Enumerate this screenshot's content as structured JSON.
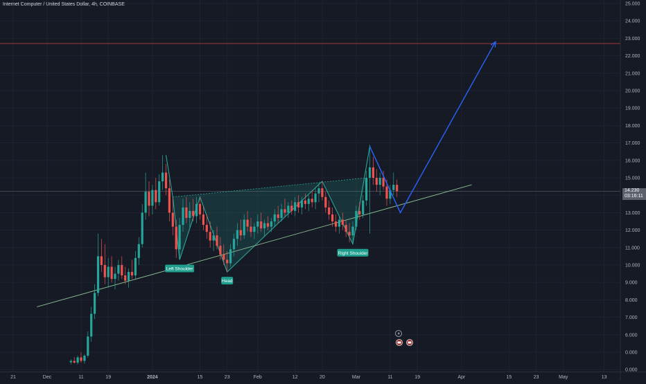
{
  "header": {
    "title": "Internet Computer / United States Dollar, 4h, COINBASE"
  },
  "current_price": {
    "value": "14.230",
    "countdown": "03:16:11"
  },
  "annotations": {
    "left_shoulder": "Left Shoulder",
    "head": "Head",
    "right_shoulder": "Right Shoulder"
  },
  "colors": {
    "background": "#161a25",
    "up": "#26a69a",
    "down": "#ef5350",
    "pattern": "#2aa698",
    "projection": "#2962ff",
    "target_line": "#b83a3a",
    "trendline": "#8fbf95"
  },
  "chart_data": {
    "type": "candlestick",
    "title": "Internet Computer / United States Dollar, 4h, COINBASE",
    "xlabel": "",
    "ylabel": "",
    "ylim": [
      0,
      25
    ],
    "y_ticks": [
      "25.000",
      "24.000",
      "23.000",
      "22.000",
      "21.000",
      "20.000",
      "19.000",
      "18.000",
      "17.000",
      "16.000",
      "15.000",
      "14.000",
      "13.000",
      "12.000",
      "11.000",
      "10.000",
      "9.000",
      "8.000",
      "7.000",
      "6.000",
      "0.000",
      "0.000"
    ],
    "x_ticks": [
      {
        "label": "21",
        "date": "2023-11-21"
      },
      {
        "label": "Dec",
        "date": "2023-12-01"
      },
      {
        "label": "11",
        "date": "2023-12-11"
      },
      {
        "label": "19",
        "date": "2023-12-19"
      },
      {
        "label": "2024",
        "date": "2024-01-01"
      },
      {
        "label": "15",
        "date": "2024-01-15"
      },
      {
        "label": "23",
        "date": "2024-01-23"
      },
      {
        "label": "Feb",
        "date": "2024-02-01"
      },
      {
        "label": "12",
        "date": "2024-02-12"
      },
      {
        "label": "20",
        "date": "2024-02-20"
      },
      {
        "label": "Mar",
        "date": "2024-03-01"
      },
      {
        "label": "11",
        "date": "2024-03-11"
      },
      {
        "label": "19",
        "date": "2024-03-19"
      },
      {
        "label": "Apr",
        "date": "2024-04-01"
      },
      {
        "label": "15",
        "date": "2024-04-15"
      },
      {
        "label": "23",
        "date": "2024-04-23"
      },
      {
        "label": "May",
        "date": "2024-05-01"
      },
      {
        "label": "13",
        "date": "2024-05-13"
      }
    ],
    "target_level": 22.7,
    "trendline": [
      [
        "2023-11-28",
        7.6
      ],
      [
        "2024-04-04",
        14.6
      ]
    ],
    "pattern_points": [
      {
        "date": "2024-01-05",
        "value": 16.3
      },
      {
        "date": "2024-01-07",
        "value": 13.9
      },
      {
        "date": "2024-01-09",
        "value": 10.3
      },
      {
        "date": "2024-01-15",
        "value": 13.9
      },
      {
        "date": "2024-01-23",
        "value": 9.6
      },
      {
        "date": "2024-02-20",
        "value": 14.8
      },
      {
        "date": "2024-02-29",
        "value": 11.2
      },
      {
        "date": "2024-03-05",
        "value": 16.8
      },
      {
        "date": "2024-03-14",
        "value": 13.0
      }
    ],
    "projection": [
      {
        "date": "2024-03-05",
        "value": 16.8
      },
      {
        "date": "2024-03-14",
        "value": 13.0
      },
      {
        "date": "2024-04-11",
        "value": 22.8
      }
    ],
    "neckline": [
      [
        "2024-01-07",
        13.9
      ],
      [
        "2024-03-04",
        15.0
      ]
    ],
    "candles": [
      {
        "d": "2023-12-08",
        "o": 4.42,
        "h": 4.6,
        "l": 4.3,
        "c": 4.5
      },
      {
        "d": "2023-12-09",
        "o": 4.5,
        "h": 4.72,
        "l": 4.35,
        "c": 4.4
      },
      {
        "d": "2023-12-10",
        "o": 4.4,
        "h": 4.8,
        "l": 4.3,
        "c": 4.7
      },
      {
        "d": "2023-12-11",
        "o": 4.7,
        "h": 5.0,
        "l": 4.4,
        "c": 4.5
      },
      {
        "d": "2023-12-12",
        "o": 4.5,
        "h": 4.9,
        "l": 4.35,
        "c": 4.8
      },
      {
        "d": "2023-12-13",
        "o": 4.8,
        "h": 6.2,
        "l": 4.7,
        "c": 5.9
      },
      {
        "d": "2023-12-14",
        "o": 5.9,
        "h": 7.6,
        "l": 5.6,
        "c": 7.2
      },
      {
        "d": "2023-12-15",
        "o": 7.2,
        "h": 8.9,
        "l": 6.9,
        "c": 8.4
      },
      {
        "d": "2023-12-16",
        "o": 8.4,
        "h": 11.8,
        "l": 8.2,
        "c": 10.5
      },
      {
        "d": "2023-12-17",
        "o": 10.5,
        "h": 11.5,
        "l": 9.6,
        "c": 10.0
      },
      {
        "d": "2023-12-18",
        "o": 10.0,
        "h": 11.2,
        "l": 8.9,
        "c": 9.3
      },
      {
        "d": "2023-12-19",
        "o": 9.3,
        "h": 10.4,
        "l": 8.7,
        "c": 9.9
      },
      {
        "d": "2023-12-20",
        "o": 9.9,
        "h": 10.5,
        "l": 9.0,
        "c": 9.2
      },
      {
        "d": "2023-12-21",
        "o": 9.2,
        "h": 9.9,
        "l": 8.6,
        "c": 9.5
      },
      {
        "d": "2023-12-22",
        "o": 9.5,
        "h": 10.3,
        "l": 9.1,
        "c": 10.0
      },
      {
        "d": "2023-12-23",
        "o": 10.0,
        "h": 10.5,
        "l": 9.2,
        "c": 9.4
      },
      {
        "d": "2023-12-24",
        "o": 9.4,
        "h": 9.9,
        "l": 8.9,
        "c": 9.1
      },
      {
        "d": "2023-12-25",
        "o": 9.1,
        "h": 9.8,
        "l": 8.7,
        "c": 9.6
      },
      {
        "d": "2023-12-26",
        "o": 9.6,
        "h": 10.3,
        "l": 9.2,
        "c": 9.4
      },
      {
        "d": "2023-12-27",
        "o": 9.4,
        "h": 10.8,
        "l": 9.2,
        "c": 10.4
      },
      {
        "d": "2023-12-28",
        "o": 10.4,
        "h": 11.6,
        "l": 10.0,
        "c": 11.2
      },
      {
        "d": "2023-12-29",
        "o": 11.2,
        "h": 13.5,
        "l": 11.0,
        "c": 13.0
      },
      {
        "d": "2023-12-30",
        "o": 13.0,
        "h": 15.3,
        "l": 12.6,
        "c": 14.2
      },
      {
        "d": "2023-12-31",
        "o": 14.2,
        "h": 14.8,
        "l": 12.8,
        "c": 13.4
      },
      {
        "d": "2024-01-01",
        "o": 13.4,
        "h": 14.6,
        "l": 12.9,
        "c": 14.3
      },
      {
        "d": "2024-01-02",
        "o": 14.3,
        "h": 15.0,
        "l": 13.2,
        "c": 13.6
      },
      {
        "d": "2024-01-03",
        "o": 13.6,
        "h": 15.2,
        "l": 13.4,
        "c": 14.8
      },
      {
        "d": "2024-01-04",
        "o": 14.8,
        "h": 16.3,
        "l": 14.3,
        "c": 15.3
      },
      {
        "d": "2024-01-05",
        "o": 15.3,
        "h": 15.8,
        "l": 14.0,
        "c": 14.4
      },
      {
        "d": "2024-01-06",
        "o": 14.4,
        "h": 14.9,
        "l": 12.5,
        "c": 13.0
      },
      {
        "d": "2024-01-07",
        "o": 13.0,
        "h": 13.9,
        "l": 11.7,
        "c": 12.2
      },
      {
        "d": "2024-01-08",
        "o": 12.2,
        "h": 12.6,
        "l": 10.4,
        "c": 10.9
      },
      {
        "d": "2024-01-09",
        "o": 10.9,
        "h": 12.7,
        "l": 10.3,
        "c": 12.3
      },
      {
        "d": "2024-01-10",
        "o": 12.3,
        "h": 13.8,
        "l": 11.9,
        "c": 13.3
      },
      {
        "d": "2024-01-11",
        "o": 13.3,
        "h": 13.9,
        "l": 12.4,
        "c": 12.7
      },
      {
        "d": "2024-01-12",
        "o": 12.7,
        "h": 13.6,
        "l": 12.1,
        "c": 13.1
      },
      {
        "d": "2024-01-13",
        "o": 13.1,
        "h": 13.8,
        "l": 12.5,
        "c": 12.8
      },
      {
        "d": "2024-01-14",
        "o": 12.8,
        "h": 13.9,
        "l": 12.4,
        "c": 13.5
      },
      {
        "d": "2024-01-15",
        "o": 13.5,
        "h": 13.9,
        "l": 12.6,
        "c": 12.9
      },
      {
        "d": "2024-01-16",
        "o": 12.9,
        "h": 13.4,
        "l": 12.0,
        "c": 12.3
      },
      {
        "d": "2024-01-17",
        "o": 12.3,
        "h": 12.9,
        "l": 11.5,
        "c": 11.9
      },
      {
        "d": "2024-01-18",
        "o": 11.9,
        "h": 12.5,
        "l": 11.0,
        "c": 11.4
      },
      {
        "d": "2024-01-19",
        "o": 11.4,
        "h": 12.0,
        "l": 10.8,
        "c": 11.7
      },
      {
        "d": "2024-01-20",
        "o": 11.7,
        "h": 12.2,
        "l": 10.9,
        "c": 11.1
      },
      {
        "d": "2024-01-21",
        "o": 11.1,
        "h": 11.6,
        "l": 10.3,
        "c": 10.6
      },
      {
        "d": "2024-01-22",
        "o": 10.6,
        "h": 11.2,
        "l": 10.0,
        "c": 10.3
      },
      {
        "d": "2024-01-23",
        "o": 10.3,
        "h": 10.8,
        "l": 9.6,
        "c": 10.1
      },
      {
        "d": "2024-01-24",
        "o": 10.1,
        "h": 11.2,
        "l": 9.9,
        "c": 10.9
      },
      {
        "d": "2024-01-25",
        "o": 10.9,
        "h": 11.8,
        "l": 10.5,
        "c": 11.5
      },
      {
        "d": "2024-01-26",
        "o": 11.5,
        "h": 12.4,
        "l": 11.1,
        "c": 12.0
      },
      {
        "d": "2024-01-27",
        "o": 12.0,
        "h": 12.6,
        "l": 11.4,
        "c": 11.7
      },
      {
        "d": "2024-01-28",
        "o": 11.7,
        "h": 12.9,
        "l": 11.5,
        "c": 12.6
      },
      {
        "d": "2024-01-29",
        "o": 12.6,
        "h": 13.1,
        "l": 11.9,
        "c": 12.2
      },
      {
        "d": "2024-01-30",
        "o": 12.2,
        "h": 12.7,
        "l": 11.6,
        "c": 11.9
      },
      {
        "d": "2024-01-31",
        "o": 11.9,
        "h": 12.4,
        "l": 11.5,
        "c": 12.2
      },
      {
        "d": "2024-02-01",
        "o": 12.2,
        "h": 12.9,
        "l": 11.8,
        "c": 12.5
      },
      {
        "d": "2024-02-02",
        "o": 12.5,
        "h": 13.0,
        "l": 11.9,
        "c": 12.1
      },
      {
        "d": "2024-02-03",
        "o": 12.1,
        "h": 12.6,
        "l": 11.6,
        "c": 12.4
      },
      {
        "d": "2024-02-04",
        "o": 12.4,
        "h": 12.8,
        "l": 12.0,
        "c": 12.2
      },
      {
        "d": "2024-02-05",
        "o": 12.2,
        "h": 12.7,
        "l": 11.9,
        "c": 12.5
      },
      {
        "d": "2024-02-06",
        "o": 12.5,
        "h": 13.2,
        "l": 12.2,
        "c": 12.9
      },
      {
        "d": "2024-02-07",
        "o": 12.9,
        "h": 13.4,
        "l": 12.4,
        "c": 12.7
      },
      {
        "d": "2024-02-08",
        "o": 12.7,
        "h": 13.5,
        "l": 12.5,
        "c": 13.2
      },
      {
        "d": "2024-02-09",
        "o": 13.2,
        "h": 13.8,
        "l": 12.8,
        "c": 13.0
      },
      {
        "d": "2024-02-10",
        "o": 13.0,
        "h": 13.6,
        "l": 12.7,
        "c": 13.4
      },
      {
        "d": "2024-02-11",
        "o": 13.4,
        "h": 13.7,
        "l": 12.9,
        "c": 13.1
      },
      {
        "d": "2024-02-12",
        "o": 13.1,
        "h": 13.9,
        "l": 12.8,
        "c": 13.6
      },
      {
        "d": "2024-02-13",
        "o": 13.6,
        "h": 14.0,
        "l": 13.0,
        "c": 13.3
      },
      {
        "d": "2024-02-14",
        "o": 13.3,
        "h": 13.9,
        "l": 12.9,
        "c": 13.7
      },
      {
        "d": "2024-02-15",
        "o": 13.7,
        "h": 14.1,
        "l": 13.2,
        "c": 13.5
      },
      {
        "d": "2024-02-16",
        "o": 13.5,
        "h": 14.0,
        "l": 13.1,
        "c": 13.8
      },
      {
        "d": "2024-02-17",
        "o": 13.8,
        "h": 14.3,
        "l": 13.3,
        "c": 13.6
      },
      {
        "d": "2024-02-18",
        "o": 13.6,
        "h": 14.4,
        "l": 13.2,
        "c": 14.1
      },
      {
        "d": "2024-02-19",
        "o": 14.1,
        "h": 14.7,
        "l": 13.6,
        "c": 14.4
      },
      {
        "d": "2024-02-20",
        "o": 14.4,
        "h": 14.8,
        "l": 13.7,
        "c": 13.9
      },
      {
        "d": "2024-02-21",
        "o": 13.9,
        "h": 14.2,
        "l": 13.0,
        "c": 13.3
      },
      {
        "d": "2024-02-22",
        "o": 13.3,
        "h": 13.7,
        "l": 12.6,
        "c": 12.9
      },
      {
        "d": "2024-02-23",
        "o": 12.9,
        "h": 13.3,
        "l": 12.2,
        "c": 12.5
      },
      {
        "d": "2024-02-24",
        "o": 12.5,
        "h": 12.9,
        "l": 11.9,
        "c": 12.2
      },
      {
        "d": "2024-02-25",
        "o": 12.2,
        "h": 12.8,
        "l": 11.8,
        "c": 12.6
      },
      {
        "d": "2024-02-26",
        "o": 12.6,
        "h": 13.0,
        "l": 12.0,
        "c": 12.3
      },
      {
        "d": "2024-02-27",
        "o": 12.3,
        "h": 12.6,
        "l": 11.6,
        "c": 11.9
      },
      {
        "d": "2024-02-28",
        "o": 11.9,
        "h": 12.4,
        "l": 11.3,
        "c": 11.7
      },
      {
        "d": "2024-02-29",
        "o": 11.7,
        "h": 12.5,
        "l": 11.2,
        "c": 12.2
      },
      {
        "d": "2024-03-01",
        "o": 12.2,
        "h": 13.4,
        "l": 12.0,
        "c": 13.1
      },
      {
        "d": "2024-03-02",
        "o": 13.1,
        "h": 13.6,
        "l": 12.6,
        "c": 12.9
      },
      {
        "d": "2024-03-03",
        "o": 12.9,
        "h": 14.0,
        "l": 12.7,
        "c": 13.7
      },
      {
        "d": "2024-03-04",
        "o": 13.7,
        "h": 15.4,
        "l": 13.4,
        "c": 15.0
      },
      {
        "d": "2024-03-05",
        "o": 15.0,
        "h": 16.9,
        "l": 11.8,
        "c": 15.6
      },
      {
        "d": "2024-03-06",
        "o": 15.6,
        "h": 16.2,
        "l": 14.6,
        "c": 15.0
      },
      {
        "d": "2024-03-07",
        "o": 15.0,
        "h": 15.5,
        "l": 14.2,
        "c": 14.6
      },
      {
        "d": "2024-03-08",
        "o": 14.6,
        "h": 15.3,
        "l": 14.0,
        "c": 15.0
      },
      {
        "d": "2024-03-09",
        "o": 15.0,
        "h": 15.4,
        "l": 14.3,
        "c": 14.5
      },
      {
        "d": "2024-03-10",
        "o": 14.5,
        "h": 14.9,
        "l": 13.4,
        "c": 13.8
      },
      {
        "d": "2024-03-11",
        "o": 13.8,
        "h": 14.6,
        "l": 13.5,
        "c": 14.3
      },
      {
        "d": "2024-03-12",
        "o": 14.3,
        "h": 15.3,
        "l": 14.0,
        "c": 14.6
      },
      {
        "d": "2024-03-13",
        "o": 14.6,
        "h": 14.9,
        "l": 13.9,
        "c": 14.23
      }
    ]
  }
}
